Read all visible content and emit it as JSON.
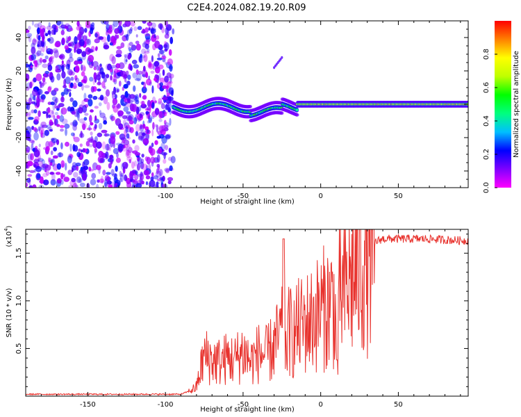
{
  "title": "C2E4.2024.082.19.20.R09",
  "chart_data": [
    {
      "type": "heatmap",
      "xlabel": "Height of straight line (km)",
      "ylabel": "Frequency (Hz)",
      "xlim": [
        -190,
        95
      ],
      "ylim": [
        -50,
        50
      ],
      "xticks": [
        -150,
        -100,
        -50,
        0,
        50
      ],
      "yticks": [
        -40,
        -20,
        0,
        20,
        40
      ],
      "colorbar": {
        "label": "Normalized spectral amplitude",
        "range": [
          0,
          1
        ],
        "ticks": [
          0.0,
          0.2,
          0.4,
          0.6,
          0.8
        ],
        "colormap": [
          "#ff00ff",
          "#7f00ff",
          "#0000ff",
          "#00bfff",
          "#00ff80",
          "#00ff00",
          "#bfff00",
          "#ffff00",
          "#ff8000",
          "#ff0000"
        ]
      },
      "regions": [
        {
          "x": [
            -190,
            -95
          ],
          "content": "scattered noise across all frequencies, amplitude about 0.05 to 0.25"
        },
        {
          "x": [
            -95,
            -15
          ],
          "center_hz": [
            -5,
            2
          ],
          "content": "wavering narrow band, amplitude about 0.3 to 0.6"
        },
        {
          "x": [
            -15,
            95
          ],
          "center_hz": 0,
          "content": "steady narrow band at 0 Hz, amplitude about 0.6 to 0.9"
        }
      ],
      "features": [
        {
          "x": [
            -30,
            -25
          ],
          "y": [
            22,
            28
          ],
          "content": "faint diagonal streak"
        }
      ]
    },
    {
      "type": "line",
      "xlabel": "Height of straight line (km)",
      "ylabel": "SNR (10 * v/v)",
      "y_multiplier": "(x10^4)",
      "y_multiplier_base": "(x10",
      "y_multiplier_exp": "4",
      "y_multiplier_close": ")",
      "xlim": [
        -190,
        95
      ],
      "ylim": [
        0,
        1.75
      ],
      "xticks": [
        -150,
        -100,
        -50,
        0,
        50
      ],
      "yticks": [
        0.5,
        1.0,
        1.5
      ],
      "ytick_labels": [
        "0.5",
        "1.0",
        "1.5"
      ],
      "color": "#e8322d",
      "x": [
        -190,
        -170,
        -150,
        -130,
        -110,
        -90,
        -85,
        -80,
        -78,
        -75,
        -70,
        -65,
        -60,
        -55,
        -50,
        -45,
        -40,
        -35,
        -30,
        -25,
        -22,
        -20,
        -18,
        -15,
        -10,
        -5,
        0,
        5,
        8,
        10,
        11,
        12,
        15,
        20,
        25,
        30,
        35,
        40,
        50,
        60,
        70,
        80,
        95
      ],
      "y": [
        0.02,
        0.02,
        0.02,
        0.02,
        0.02,
        0.02,
        0.05,
        0.1,
        0.25,
        0.45,
        0.4,
        0.38,
        0.42,
        0.4,
        0.5,
        0.38,
        0.48,
        0.45,
        0.55,
        0.7,
        0.6,
        0.75,
        0.65,
        0.75,
        0.8,
        0.85,
        0.95,
        1.0,
        1.05,
        0.85,
        0.4,
        1.1,
        1.15,
        1.3,
        1.45,
        1.55,
        1.62,
        1.65,
        1.65,
        1.65,
        1.65,
        1.64,
        1.63
      ],
      "annotations": [
        {
          "x": -24,
          "y": 1.65,
          "content": "spike"
        },
        {
          "x": 10,
          "y": 0.38,
          "content": "dip"
        }
      ]
    }
  ]
}
